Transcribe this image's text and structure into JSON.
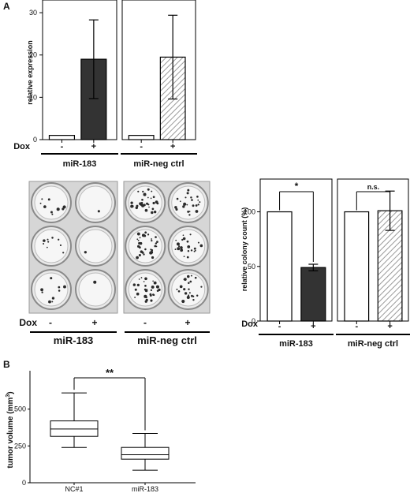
{
  "panels": {
    "A": "A",
    "B": "B"
  },
  "colors": {
    "white_bar": "#ffffff",
    "dark_bar": "#333333",
    "hatch": "#9a9a9a",
    "axis": "#000000",
    "dish_bg": "#d8d8d8"
  },
  "chart_data": [
    {
      "type": "bar",
      "panel": "A",
      "ylabel": "relative expression",
      "ylim": [
        0,
        33
      ],
      "yticks": [
        0,
        10,
        20,
        30
      ],
      "row_label": "Dox",
      "categories": [
        "-",
        "+"
      ],
      "groups": [
        {
          "name": "miR-183",
          "values": [
            1,
            19
          ],
          "errors": [
            0,
            9.3
          ],
          "fills": [
            "white",
            "dark"
          ]
        },
        {
          "name": "miR-neg ctrl",
          "values": [
            1,
            19.5
          ],
          "errors": [
            0,
            9.9
          ],
          "fills": [
            "white",
            "hatch"
          ]
        }
      ]
    },
    {
      "type": "bar",
      "panel": "A",
      "ylabel": "relative colony count (%)",
      "ylim": [
        0,
        130
      ],
      "yticks": [
        0,
        50,
        100
      ],
      "row_label": "Dox",
      "categories": [
        "-",
        "+"
      ],
      "groups": [
        {
          "name": "miR-183",
          "values": [
            100,
            49
          ],
          "errors": [
            0,
            3
          ],
          "fills": [
            "white",
            "dark"
          ],
          "significance": "*"
        },
        {
          "name": "miR-neg ctrl",
          "values": [
            100,
            101
          ],
          "errors": [
            0,
            18
          ],
          "fills": [
            "white",
            "hatch"
          ],
          "significance": "n.s."
        }
      ]
    },
    {
      "type": "box",
      "panel": "B",
      "ylabel": "tumor volume (mm3)",
      "ylabel_main": "tumor volume (mm",
      "ylabel_sup": "3",
      "ylabel_tail": ")",
      "ylim": [
        0,
        750
      ],
      "yticks": [
        0,
        250,
        500
      ],
      "categories": [
        "NC#1",
        "miR-183"
      ],
      "boxes": [
        {
          "min": 240,
          "q1": 315,
          "median": 365,
          "q3": 420,
          "max": 610
        },
        {
          "min": 85,
          "q1": 160,
          "median": 190,
          "q3": 240,
          "max": 335
        }
      ],
      "significance": "**"
    }
  ],
  "colony_photo": {
    "row_label": "Dox",
    "columns": [
      "-",
      "+"
    ],
    "groups": [
      "miR-183",
      "miR-neg ctrl"
    ]
  }
}
